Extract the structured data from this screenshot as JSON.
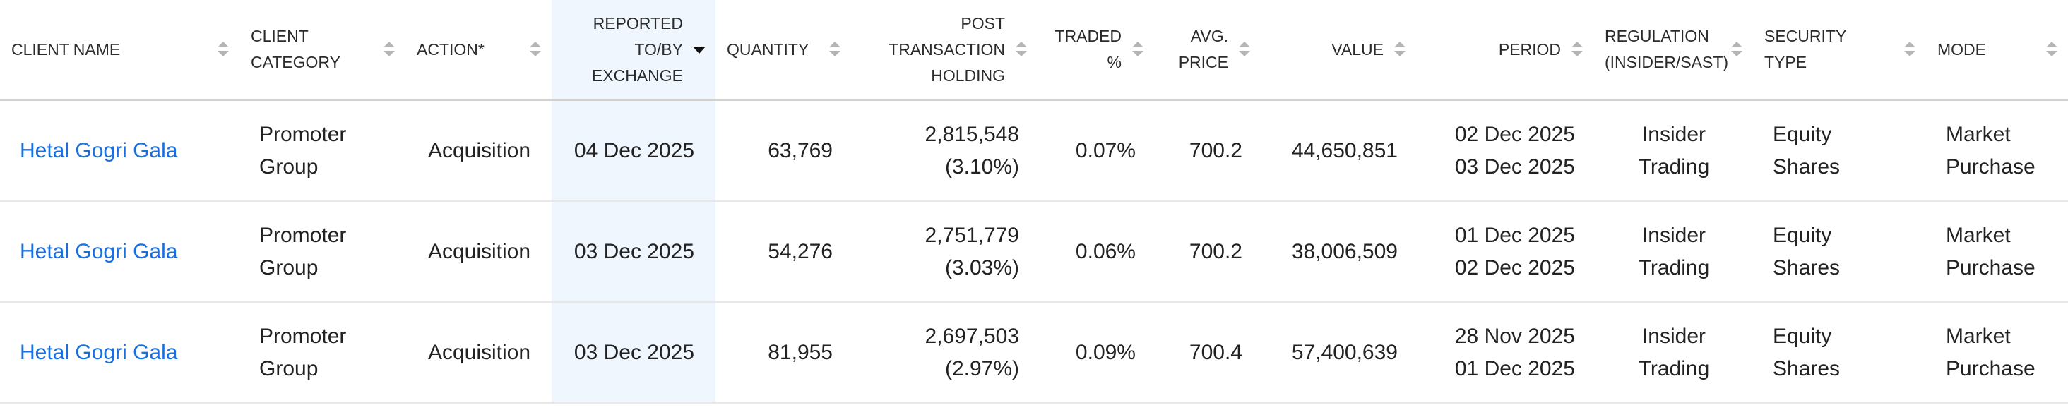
{
  "table": {
    "headers": [
      [
        "CLIENT NAME"
      ],
      [
        "CLIENT",
        "CATEGORY"
      ],
      [
        "ACTION*"
      ],
      [
        "REPORTED",
        "TO/BY",
        "EXCHANGE"
      ],
      [
        "QUANTITY"
      ],
      [
        "POST",
        "TRANSACTION",
        "HOLDING"
      ],
      [
        "TRADED",
        "%"
      ],
      [
        "AVG.",
        "PRICE"
      ],
      [
        "VALUE"
      ],
      [
        "PERIOD"
      ],
      [
        "REGULATION",
        "(INSIDER/SAST)"
      ],
      [
        "SECURITY",
        "TYPE"
      ],
      [
        "MODE"
      ]
    ],
    "rows": [
      [
        [
          "Hetal Gogri Gala"
        ],
        [
          "Promoter",
          "Group"
        ],
        [
          "Acquisition"
        ],
        [
          "04 Dec 2025"
        ],
        [
          "63,769"
        ],
        [
          "2,815,548",
          "(3.10%)"
        ],
        [
          "0.07%"
        ],
        [
          "700.2"
        ],
        [
          "44,650,851"
        ],
        [
          "02 Dec 2025",
          "03 Dec 2025"
        ],
        [
          "Insider Trading"
        ],
        [
          "Equity",
          "Shares"
        ],
        [
          "Market",
          "Purchase"
        ]
      ],
      [
        [
          "Hetal Gogri Gala"
        ],
        [
          "Promoter",
          "Group"
        ],
        [
          "Acquisition"
        ],
        [
          "03 Dec 2025"
        ],
        [
          "54,276"
        ],
        [
          "2,751,779",
          "(3.03%)"
        ],
        [
          "0.06%"
        ],
        [
          "700.2"
        ],
        [
          "38,006,509"
        ],
        [
          "01 Dec 2025",
          "02 Dec 2025"
        ],
        [
          "Insider Trading"
        ],
        [
          "Equity",
          "Shares"
        ],
        [
          "Market",
          "Purchase"
        ]
      ],
      [
        [
          "Hetal Gogri Gala"
        ],
        [
          "Promoter",
          "Group"
        ],
        [
          "Acquisition"
        ],
        [
          "03 Dec 2025"
        ],
        [
          "81,955"
        ],
        [
          "2,697,503",
          "(2.97%)"
        ],
        [
          "0.09%"
        ],
        [
          "700.4"
        ],
        [
          "57,400,639"
        ],
        [
          "28 Nov 2025",
          "01 Dec 2025"
        ],
        [
          "Insider Trading"
        ],
        [
          "Equity",
          "Shares"
        ],
        [
          "Market",
          "Purchase"
        ]
      ]
    ]
  }
}
